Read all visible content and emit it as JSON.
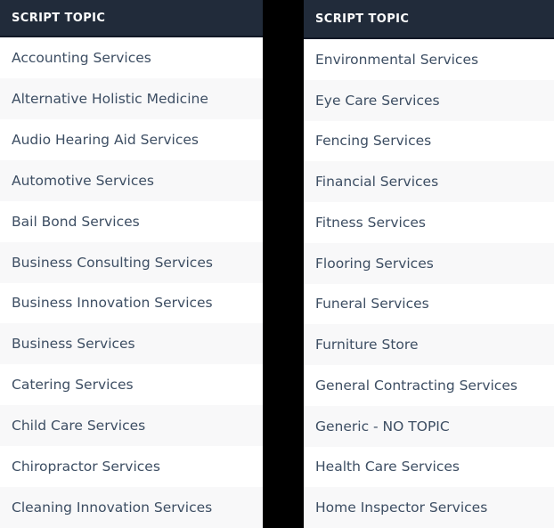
{
  "left_table": {
    "header": "SCRIPT TOPIC",
    "rows": [
      "Accounting Services",
      "Alternative Holistic Medicine",
      "Audio Hearing Aid Services",
      "Automotive Services",
      "Bail Bond Services",
      "Business Consulting Services",
      "Business Innovation Services",
      "Business Services",
      "Catering Services",
      "Child Care Services",
      "Chiropractor Services",
      "Cleaning Innovation Services"
    ]
  },
  "right_table": {
    "header": "SCRIPT TOPIC",
    "rows": [
      "Environmental Services",
      "Eye Care Services",
      "Fencing Services",
      "Financial Services",
      "Fitness Services",
      "Flooring Services",
      "Funeral Services",
      "Furniture Store",
      "General Contracting Services",
      "Generic - NO TOPIC",
      "Health Care Services",
      "Home Inspector Services"
    ]
  },
  "colors": {
    "header_bg": "#212b3a",
    "header_border": "#121826",
    "header_text": "#ffffff",
    "row_text": "#3d4e63",
    "row_bg": "#ffffff",
    "row_alt_bg": "#f8f8f9",
    "gap_bg": "#000000"
  }
}
